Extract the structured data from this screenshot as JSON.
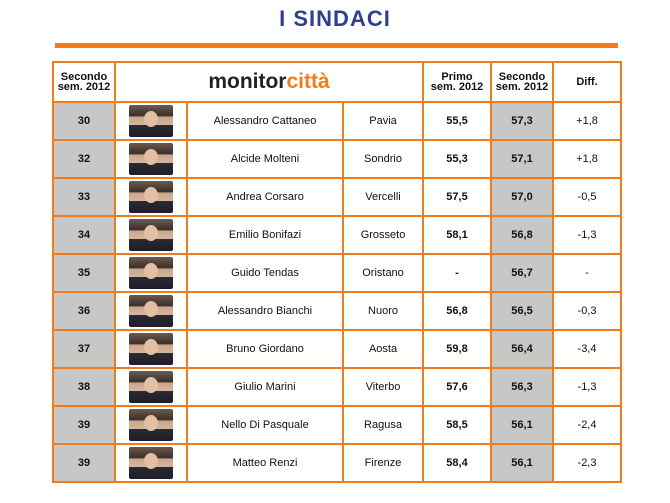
{
  "title": "I SINDACI",
  "header": {
    "rank_label_line1": "Secondo",
    "rank_label_line2": "sem. 2012",
    "logo_main": "monitor",
    "logo_accent": "città",
    "first_label_line1": "Primo",
    "first_label_line2": "sem. 2012",
    "second_label_line1": "Secondo",
    "second_label_line2": "sem. 2012",
    "diff_label": "Diff."
  },
  "rows": [
    {
      "rank": "30",
      "name": "Alessandro Cattaneo",
      "city": "Pavia",
      "first": "55,5",
      "second": "57,3",
      "diff": "+1,8"
    },
    {
      "rank": "32",
      "name": "Alcide Molteni",
      "city": "Sondrio",
      "first": "55,3",
      "second": "57,1",
      "diff": "+1,8"
    },
    {
      "rank": "33",
      "name": "Andrea Corsaro",
      "city": "Vercelli",
      "first": "57,5",
      "second": "57,0",
      "diff": "-0,5"
    },
    {
      "rank": "34",
      "name": "Emilio Bonifazi",
      "city": "Grosseto",
      "first": "58,1",
      "second": "56,8",
      "diff": "-1,3"
    },
    {
      "rank": "35",
      "name": "Guido Tendas",
      "city": "Oristano",
      "first": "-",
      "second": "56,7",
      "diff": "-"
    },
    {
      "rank": "36",
      "name": "Alessandro Bianchi",
      "city": "Nuoro",
      "first": "56,8",
      "second": "56,5",
      "diff": "-0,3"
    },
    {
      "rank": "37",
      "name": "Bruno Giordano",
      "city": "Aosta",
      "first": "59,8",
      "second": "56,4",
      "diff": "-3,4"
    },
    {
      "rank": "38",
      "name": "Giulio Marini",
      "city": "Viterbo",
      "first": "57,6",
      "second": "56,3",
      "diff": "-1,3"
    },
    {
      "rank": "39",
      "name": "Nello Di Pasquale",
      "city": "Ragusa",
      "first": "58,5",
      "second": "56,1",
      "diff": "-2,4"
    },
    {
      "rank": "39",
      "name": "Matteo Renzi",
      "city": "Firenze",
      "first": "58,4",
      "second": "56,1",
      "diff": "-2,3"
    }
  ],
  "colors": {
    "accent": "#f07c1e",
    "title": "#2d3f8e",
    "shade": "#c7c7c7"
  }
}
